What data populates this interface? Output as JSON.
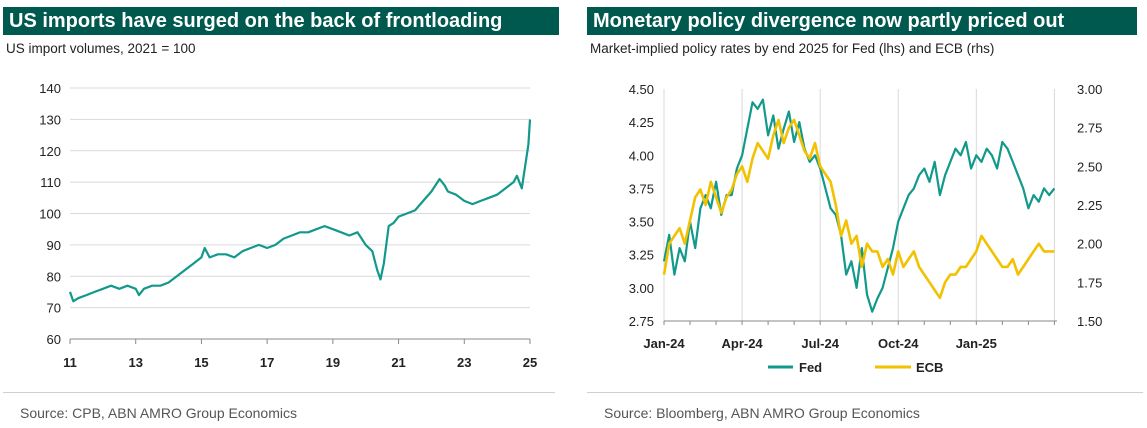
{
  "colors": {
    "title_bg": "#00594f",
    "teal": "#12998b",
    "gold": "#f2c100",
    "grid": "#d9d9d9"
  },
  "left": {
    "title": "US imports have surged on the back of frontloading",
    "subtitle": "US import volumes, 2021 = 100",
    "source": "Source: CPB, ABN AMRO Group Economics"
  },
  "right": {
    "title": "Monetary policy divergence now partly priced out",
    "subtitle": "Market-implied policy rates by end 2025 for Fed (lhs) and ECB (rhs)",
    "source": "Source: Bloomberg, ABN AMRO Group Economics"
  },
  "chart_data": [
    {
      "type": "line",
      "title": "US imports have surged on the back of frontloading",
      "ylabel": "US import volumes, 2021 = 100",
      "xlim": [
        2011,
        2025
      ],
      "ylim": [
        60,
        140
      ],
      "yticks": [
        "60",
        "70",
        "80",
        "90",
        "100",
        "110",
        "120",
        "130",
        "140"
      ],
      "xticks": [
        "11",
        "13",
        "15",
        "17",
        "19",
        "21",
        "23",
        "25"
      ],
      "grid": "horizontal",
      "series": [
        {
          "name": "US import volumes",
          "x": [
            2011.0,
            2011.1,
            2011.25,
            2011.5,
            2011.75,
            2012.0,
            2012.25,
            2012.5,
            2012.75,
            2013.0,
            2013.1,
            2013.25,
            2013.5,
            2013.75,
            2014.0,
            2014.25,
            2014.5,
            2014.75,
            2015.0,
            2015.1,
            2015.25,
            2015.5,
            2015.75,
            2016.0,
            2016.25,
            2016.5,
            2016.75,
            2017.0,
            2017.25,
            2017.5,
            2017.75,
            2018.0,
            2018.25,
            2018.5,
            2018.75,
            2019.0,
            2019.25,
            2019.5,
            2019.75,
            2020.0,
            2020.2,
            2020.35,
            2020.45,
            2020.55,
            2020.7,
            2020.85,
            2021.0,
            2021.25,
            2021.5,
            2021.75,
            2022.0,
            2022.25,
            2022.4,
            2022.5,
            2022.75,
            2023.0,
            2023.25,
            2023.5,
            2023.75,
            2024.0,
            2024.25,
            2024.5,
            2024.6,
            2024.75,
            2024.85,
            2024.95,
            2025.0
          ],
          "values": [
            75,
            72,
            73,
            74,
            75,
            76,
            77,
            76,
            77,
            76,
            74,
            76,
            77,
            77,
            78,
            80,
            82,
            84,
            86,
            89,
            86,
            87,
            87,
            86,
            88,
            89,
            90,
            89,
            90,
            92,
            93,
            94,
            94,
            95,
            96,
            95,
            94,
            93,
            94,
            90,
            88,
            82,
            79,
            84,
            96,
            97,
            99,
            100,
            101,
            104,
            107,
            111,
            109,
            107,
            106,
            104,
            103,
            104,
            105,
            106,
            108,
            110,
            112,
            108,
            115,
            122,
            130
          ]
        }
      ]
    },
    {
      "type": "line",
      "title": "Monetary policy divergence now partly priced out",
      "ylabel": "Market-implied policy rates by end 2025 for Fed (lhs) and ECB (rhs)",
      "x_categories": [
        "Jan-24",
        "Apr-24",
        "Jul-24",
        "Oct-24",
        "Jan-25"
      ],
      "xlim": [
        0,
        15.1
      ],
      "ylim_left": [
        2.75,
        4.5
      ],
      "ylim_right": [
        1.5,
        3.0
      ],
      "yticks_left": [
        "2.75",
        "3.00",
        "3.25",
        "3.50",
        "3.75",
        "4.00",
        "4.25",
        "4.50"
      ],
      "yticks_right": [
        "1.50",
        "1.75",
        "2.00",
        "2.25",
        "2.50",
        "2.75",
        "3.00"
      ],
      "grid": "vertical",
      "legend": "bottom",
      "series": [
        {
          "name": "Fed",
          "axis": "left",
          "x": [
            0.0,
            0.2,
            0.4,
            0.6,
            0.8,
            1.0,
            1.2,
            1.4,
            1.6,
            1.8,
            2.0,
            2.2,
            2.4,
            2.6,
            2.8,
            3.0,
            3.2,
            3.4,
            3.6,
            3.8,
            4.0,
            4.2,
            4.4,
            4.6,
            4.8,
            5.0,
            5.2,
            5.4,
            5.6,
            5.8,
            6.0,
            6.2,
            6.4,
            6.6,
            6.8,
            7.0,
            7.2,
            7.4,
            7.6,
            7.8,
            8.0,
            8.2,
            8.4,
            8.6,
            8.8,
            9.0,
            9.2,
            9.4,
            9.6,
            9.8,
            10.0,
            10.2,
            10.4,
            10.6,
            10.8,
            11.0,
            11.2,
            11.4,
            11.6,
            11.8,
            12.0,
            12.2,
            12.4,
            12.6,
            12.8,
            13.0,
            13.2,
            13.4,
            13.6,
            13.8,
            14.0,
            14.2,
            14.4,
            14.6,
            14.8,
            15.0
          ],
          "values": [
            3.2,
            3.4,
            3.1,
            3.3,
            3.2,
            3.5,
            3.3,
            3.6,
            3.7,
            3.6,
            3.8,
            3.55,
            3.7,
            3.7,
            3.9,
            4.0,
            4.2,
            4.4,
            4.35,
            4.42,
            4.15,
            4.3,
            4.05,
            4.2,
            4.33,
            4.1,
            4.25,
            4.05,
            3.95,
            4.0,
            3.9,
            3.75,
            3.6,
            3.55,
            3.4,
            3.1,
            3.2,
            3.0,
            3.3,
            2.95,
            2.82,
            2.92,
            3.0,
            3.15,
            3.3,
            3.5,
            3.6,
            3.7,
            3.75,
            3.85,
            3.9,
            3.8,
            3.95,
            3.7,
            3.85,
            3.95,
            4.05,
            4.0,
            4.1,
            3.9,
            4.0,
            3.95,
            4.05,
            4.0,
            3.9,
            4.1,
            4.05,
            3.95,
            3.85,
            3.75,
            3.6,
            3.7,
            3.65,
            3.75,
            3.7,
            3.75
          ]
        },
        {
          "name": "ECB",
          "axis": "right",
          "x": [
            0.0,
            0.2,
            0.4,
            0.6,
            0.8,
            1.0,
            1.2,
            1.4,
            1.6,
            1.8,
            2.0,
            2.2,
            2.4,
            2.6,
            2.8,
            3.0,
            3.2,
            3.4,
            3.6,
            3.8,
            4.0,
            4.2,
            4.4,
            4.6,
            4.8,
            5.0,
            5.2,
            5.4,
            5.6,
            5.8,
            6.0,
            6.2,
            6.4,
            6.6,
            6.8,
            7.0,
            7.2,
            7.4,
            7.6,
            7.8,
            8.0,
            8.2,
            8.4,
            8.6,
            8.8,
            9.0,
            9.2,
            9.4,
            9.6,
            9.8,
            10.0,
            10.2,
            10.4,
            10.6,
            10.8,
            11.0,
            11.2,
            11.4,
            11.6,
            11.8,
            12.0,
            12.2,
            12.4,
            12.6,
            12.8,
            13.0,
            13.2,
            13.4,
            13.6,
            13.8,
            14.0,
            14.2,
            14.4,
            14.6,
            14.8,
            15.0
          ],
          "values": [
            1.8,
            2.0,
            2.05,
            2.1,
            2.0,
            2.15,
            2.3,
            2.35,
            2.25,
            2.4,
            2.3,
            2.2,
            2.3,
            2.35,
            2.45,
            2.5,
            2.4,
            2.55,
            2.65,
            2.6,
            2.55,
            2.7,
            2.8,
            2.65,
            2.75,
            2.8,
            2.7,
            2.6,
            2.55,
            2.65,
            2.5,
            2.45,
            2.4,
            2.25,
            2.05,
            2.15,
            2.0,
            2.05,
            1.85,
            2.0,
            1.95,
            1.95,
            1.85,
            1.9,
            1.8,
            1.95,
            1.85,
            1.9,
            1.95,
            1.85,
            1.8,
            1.75,
            1.7,
            1.65,
            1.75,
            1.8,
            1.8,
            1.85,
            1.85,
            1.9,
            1.95,
            2.05,
            2.0,
            1.95,
            1.9,
            1.85,
            1.85,
            1.9,
            1.8,
            1.85,
            1.9,
            1.95,
            2.0,
            1.95,
            1.95,
            1.95
          ]
        }
      ]
    }
  ]
}
